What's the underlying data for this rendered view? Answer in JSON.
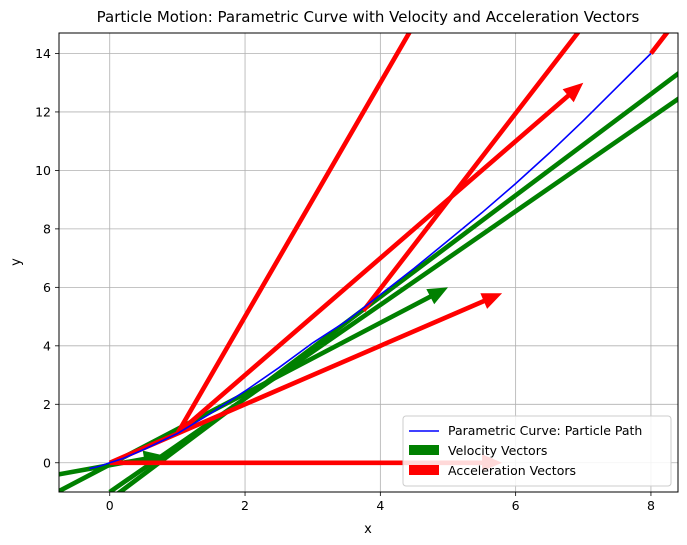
{
  "chart_data": {
    "type": "line",
    "title": "Particle Motion: Parametric Curve with Velocity and Acceleration Vectors",
    "xlabel": "x",
    "ylabel": "y",
    "xlim": [
      -0.75,
      8.4
    ],
    "ylim": [
      -1.0,
      14.7
    ],
    "xticks": [
      0,
      2,
      4,
      6,
      8
    ],
    "yticks": [
      0,
      2,
      4,
      6,
      8,
      10,
      12,
      14
    ],
    "grid": true,
    "legend_position": "lower right",
    "series": [
      {
        "name": "Parametric Curve: Particle Path",
        "kind": "curve",
        "color": "#0000ff",
        "points": [
          [
            -0.3,
            -0.2
          ],
          [
            -0.2,
            -0.15
          ],
          [
            -0.1,
            -0.08
          ],
          [
            0.0,
            0.0
          ],
          [
            0.2,
            0.15
          ],
          [
            0.5,
            0.45
          ],
          [
            1.0,
            1.0
          ],
          [
            1.5,
            1.7
          ],
          [
            2.0,
            2.45
          ],
          [
            2.5,
            3.25
          ],
          [
            3.0,
            4.1
          ],
          [
            3.5,
            4.85
          ],
          [
            4.0,
            5.75
          ],
          [
            4.5,
            6.65
          ],
          [
            5.0,
            7.6
          ],
          [
            5.5,
            8.55
          ],
          [
            6.0,
            9.55
          ],
          [
            6.5,
            10.6
          ],
          [
            7.0,
            11.7
          ],
          [
            7.5,
            12.85
          ],
          [
            8.0,
            14.0
          ]
        ]
      },
      {
        "name": "Velocity Vectors",
        "kind": "arrows",
        "color": "#008000",
        "arrows": [
          {
            "x": -1.0,
            "y": -0.5,
            "dx": 1.8,
            "dy": 0.75
          },
          {
            "x": -1.6,
            "y": -2.0,
            "dx": 6.6,
            "dy": 8.0
          },
          {
            "x": -1.0,
            "y": -3.0,
            "dx": 9.8,
            "dy": 17.0
          },
          {
            "x": 0.0,
            "y": -1.0,
            "dx": 10.0,
            "dy": 16.0
          }
        ]
      },
      {
        "name": "Acceleration Vectors",
        "kind": "arrows",
        "color": "#ff0000",
        "arrows": [
          {
            "x": 0.0,
            "y": 0.0,
            "dx": 5.8,
            "dy": 0.0
          },
          {
            "x": 0.0,
            "y": 0.0,
            "dx": 5.8,
            "dy": 5.8
          },
          {
            "x": 1.0,
            "y": 1.0,
            "dx": 6.0,
            "dy": 12.0
          },
          {
            "x": 1.0,
            "y": 1.0,
            "dx": 4.0,
            "dy": 16.0
          },
          {
            "x": 3.75,
            "y": 5.2,
            "dx": 4.0,
            "dy": 12.0
          },
          {
            "x": 8.0,
            "y": 14.0,
            "dx": 4.0,
            "dy": 12.0
          }
        ]
      }
    ]
  }
}
